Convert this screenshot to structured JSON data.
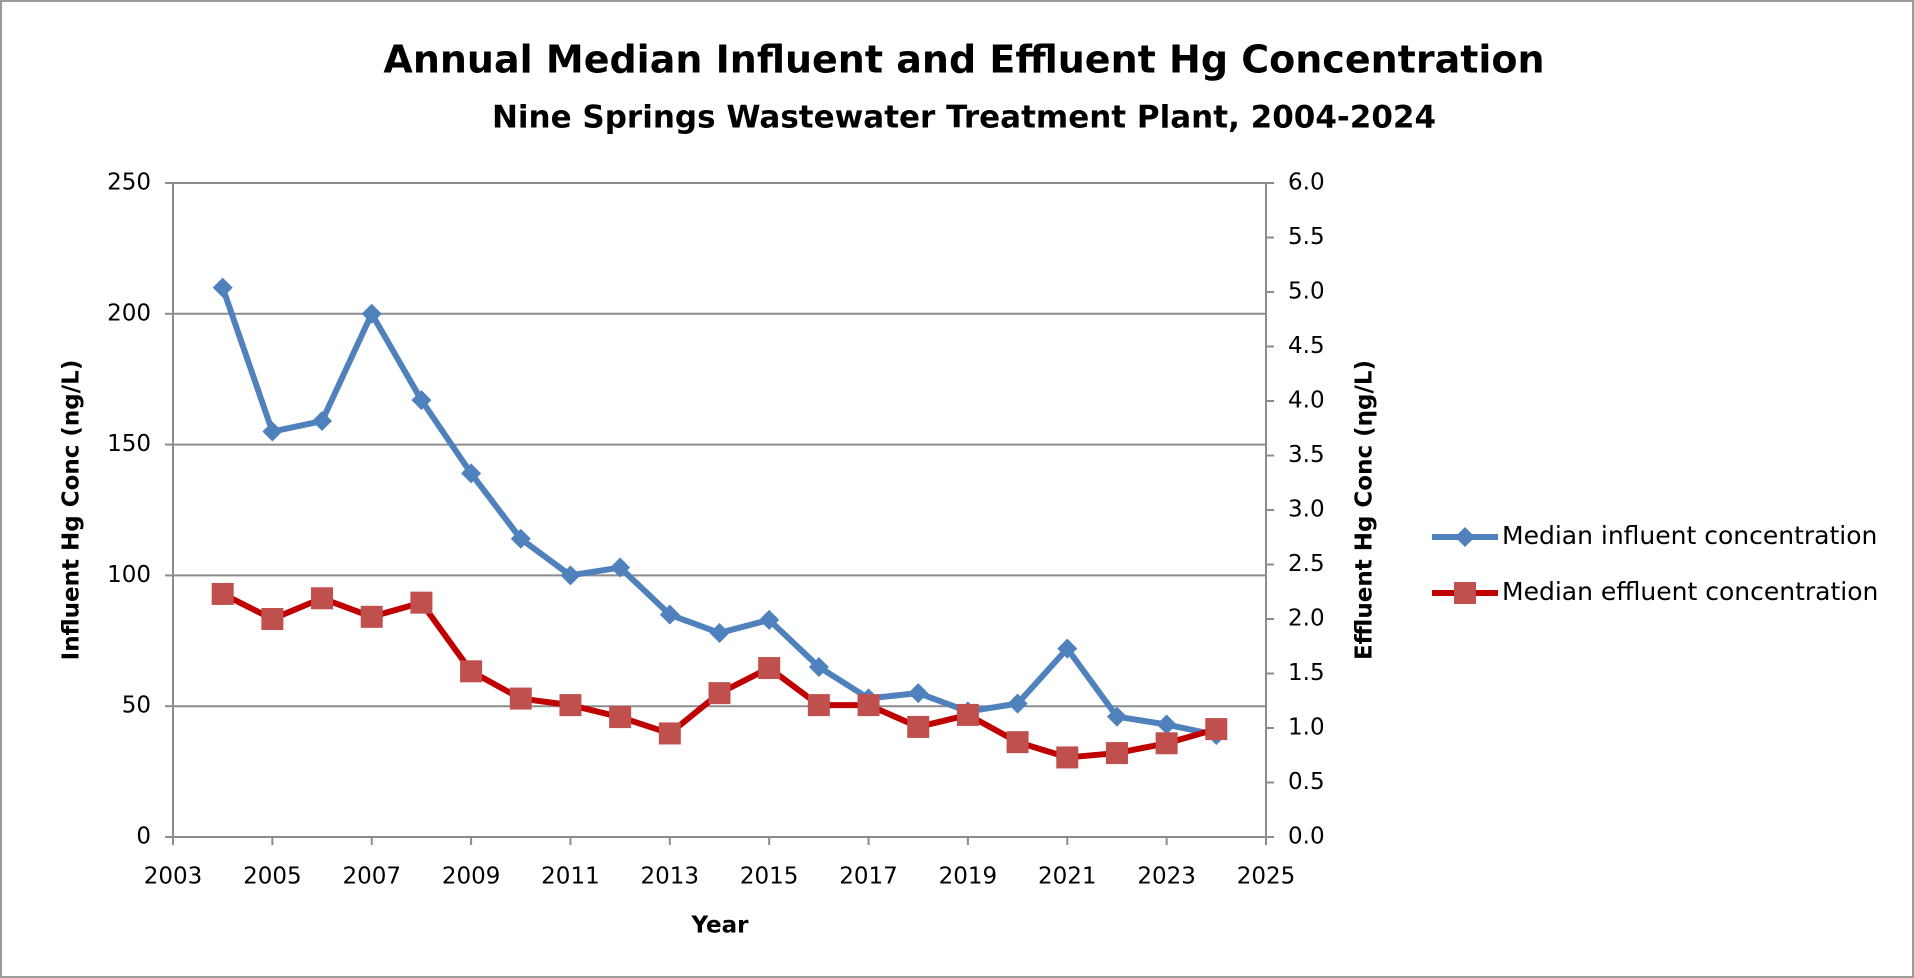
{
  "chart_data": {
    "type": "line",
    "title": "Annual Median Influent and Effluent Hg Concentration",
    "subtitle": "Nine Springs Wastewater Treatment Plant, 2004-2024",
    "x_label": "Year",
    "y_label": "Influent Hg Conc (ng/L)",
    "y2_label": "Effluent Hg Conc (ηg/L)",
    "x": [
      2004,
      2005,
      2006,
      2007,
      2008,
      2009,
      2010,
      2011,
      2012,
      2013,
      2014,
      2015,
      2016,
      2017,
      2018,
      2019,
      2020,
      2021,
      2022,
      2023,
      2024
    ],
    "series": [
      {
        "name": "Median influent concentration",
        "color": "#4f81bd",
        "marker": "diamond",
        "axis": "y",
        "values": [
          210,
          155,
          159,
          200,
          167,
          139,
          114,
          100,
          103,
          85,
          78,
          83,
          65,
          53,
          55,
          48,
          51,
          72,
          46,
          43,
          39
        ]
      },
      {
        "name": "Median effluent concentration",
        "color": "#c00000",
        "marker_color": "#c0504d",
        "marker": "square",
        "axis": "y2",
        "values": [
          2.23,
          2.0,
          2.19,
          2.02,
          2.15,
          1.52,
          1.27,
          1.21,
          1.1,
          0.95,
          1.32,
          1.55,
          1.21,
          1.21,
          1.01,
          1.12,
          0.87,
          0.73,
          0.77,
          0.86,
          0.99
        ]
      }
    ],
    "xlim": [
      2003,
      2025
    ],
    "xticks": [
      2003,
      2005,
      2007,
      2009,
      2011,
      2013,
      2015,
      2017,
      2019,
      2021,
      2023,
      2025
    ],
    "ylim": [
      0,
      250
    ],
    "yticks": [
      0,
      50,
      100,
      150,
      200,
      250
    ],
    "y2lim": [
      0,
      6
    ],
    "y2ticks": [
      {
        "value": 0,
        "label": "0.0"
      },
      0.5,
      {
        "value": 1,
        "label": "1.0"
      },
      1.5,
      {
        "value": 2,
        "label": "2.0"
      },
      2.5,
      {
        "value": 3,
        "label": "3.0"
      },
      3.5,
      {
        "value": 4,
        "label": "4.0"
      },
      4.5,
      {
        "value": 5,
        "label": "5.0"
      },
      5.5,
      {
        "value": 6,
        "label": "6.0"
      }
    ],
    "grid": true,
    "legend": "right"
  }
}
